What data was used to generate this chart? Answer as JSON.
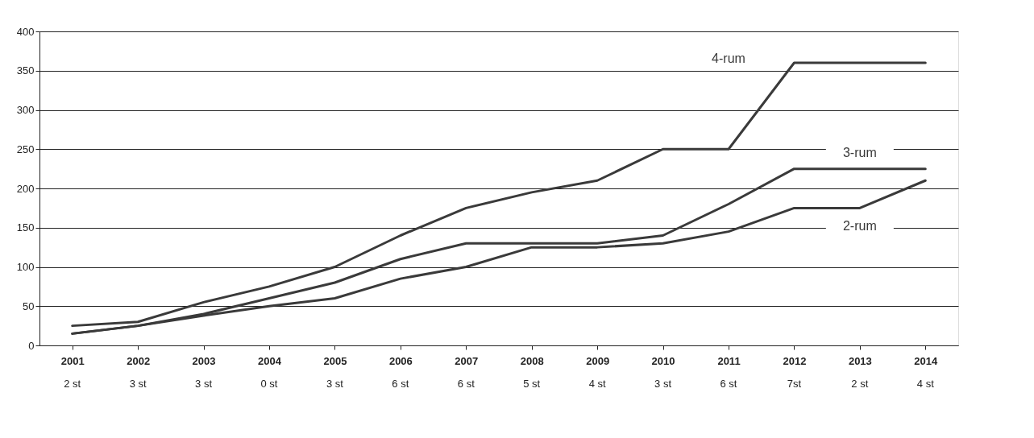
{
  "chart_data": {
    "type": "line",
    "categories": [
      "2001",
      "2002",
      "2003",
      "2004",
      "2005",
      "2006",
      "2007",
      "2008",
      "2009",
      "2010",
      "2011",
      "2012",
      "2013",
      "2014"
    ],
    "series": [
      {
        "name": "4-rum",
        "color": "#3a3a3a",
        "values": [
          25,
          30,
          55,
          75,
          100,
          140,
          175,
          195,
          210,
          250,
          250,
          360,
          360,
          360
        ]
      },
      {
        "name": "3-rum",
        "color": "#3a3a3a",
        "values": [
          15,
          25,
          40,
          60,
          80,
          110,
          130,
          130,
          130,
          140,
          180,
          225,
          225,
          225
        ]
      },
      {
        "name": "2-rum",
        "color": "#3a3a3a",
        "values": [
          15,
          25,
          38,
          50,
          60,
          85,
          100,
          125,
          125,
          130,
          145,
          175,
          175,
          210
        ]
      }
    ],
    "ylim": [
      0,
      400
    ],
    "yticks": [
      0,
      50,
      100,
      150,
      200,
      250,
      300,
      350,
      400
    ],
    "grid": "y",
    "marker": "none",
    "line_style": "solid",
    "annotations": [
      "2 st",
      "3 st",
      "3 st",
      "0 st",
      "3 st",
      "6 st",
      "6 st",
      "5 st",
      "4 st",
      "3 st",
      "6 st",
      "7st",
      "2 st",
      "4 st"
    ]
  }
}
